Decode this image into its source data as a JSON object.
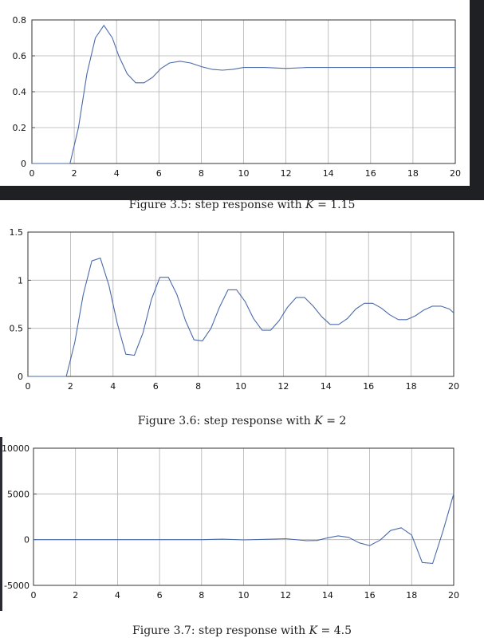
{
  "captions": [
    {
      "prefix": "Figure 3.5: step response with ",
      "var": "K",
      "suffix": " = 1.15"
    },
    {
      "prefix": "Figure 3.6: step response with ",
      "var": "K",
      "suffix": " = 2"
    },
    {
      "prefix": "Figure 3.7: step response with ",
      "var": "K",
      "suffix": " = 4.5"
    }
  ],
  "colors": {
    "line": "#4a6aaa",
    "grid": "#b0b0b0",
    "frame": "#333333",
    "background_dark": "#1f2024"
  },
  "chart_data": [
    {
      "type": "line",
      "xlim": [
        0,
        20
      ],
      "ylim": [
        0,
        0.8
      ],
      "xticks": [
        "0",
        "2",
        "4",
        "6",
        "8",
        "10",
        "12",
        "14",
        "16",
        "18",
        "20"
      ],
      "yticks": [
        "0",
        "0.2",
        "0.4",
        "0.6",
        "0.8"
      ],
      "grid": true,
      "series": [
        {
          "x": [
            0,
            1.8,
            2.2,
            2.6,
            3.0,
            3.4,
            3.8,
            4.1,
            4.5,
            4.9,
            5.3,
            5.7,
            6.1,
            6.5,
            7.0,
            7.5,
            8.0,
            8.5,
            9.0,
            9.5,
            10,
            11,
            12,
            13,
            14,
            16,
            18,
            20
          ],
          "y": [
            0,
            0,
            0.2,
            0.5,
            0.7,
            0.77,
            0.7,
            0.6,
            0.5,
            0.45,
            0.45,
            0.48,
            0.53,
            0.56,
            0.57,
            0.56,
            0.54,
            0.525,
            0.52,
            0.525,
            0.535,
            0.535,
            0.53,
            0.535,
            0.535,
            0.535,
            0.535,
            0.535
          ]
        }
      ]
    },
    {
      "type": "line",
      "xlim": [
        0,
        20
      ],
      "ylim": [
        0,
        1.5
      ],
      "xticks": [
        "0",
        "2",
        "4",
        "6",
        "8",
        "10",
        "12",
        "14",
        "16",
        "18",
        "20"
      ],
      "yticks": [
        "0",
        "0.5",
        "1",
        "1.5"
      ],
      "grid": true,
      "series": [
        {
          "x": [
            0,
            1.8,
            2.2,
            2.6,
            3.0,
            3.4,
            3.8,
            4.2,
            4.6,
            5.0,
            5.4,
            5.8,
            6.2,
            6.6,
            7.0,
            7.4,
            7.8,
            8.2,
            8.6,
            9.0,
            9.4,
            9.8,
            10.2,
            10.6,
            11.0,
            11.4,
            11.8,
            12.2,
            12.6,
            13.0,
            13.4,
            13.8,
            14.2,
            14.6,
            15.0,
            15.4,
            15.8,
            16.2,
            16.6,
            17.0,
            17.4,
            17.8,
            18.2,
            18.6,
            19.0,
            19.4,
            19.8,
            20
          ],
          "y": [
            0,
            0,
            0.35,
            0.85,
            1.2,
            1.23,
            0.95,
            0.55,
            0.23,
            0.22,
            0.45,
            0.8,
            1.03,
            1.03,
            0.85,
            0.58,
            0.38,
            0.37,
            0.5,
            0.72,
            0.9,
            0.9,
            0.78,
            0.6,
            0.48,
            0.48,
            0.58,
            0.72,
            0.82,
            0.82,
            0.73,
            0.62,
            0.54,
            0.54,
            0.6,
            0.7,
            0.76,
            0.76,
            0.71,
            0.64,
            0.59,
            0.59,
            0.63,
            0.69,
            0.73,
            0.73,
            0.7,
            0.66
          ]
        }
      ]
    },
    {
      "type": "line",
      "xlim": [
        0,
        20
      ],
      "ylim": [
        -5000,
        10000
      ],
      "xticks": [
        "0",
        "2",
        "4",
        "6",
        "8",
        "10",
        "12",
        "14",
        "16",
        "18",
        "20"
      ],
      "yticks": [
        "-5000",
        "0",
        "5000",
        "10000"
      ],
      "grid": true,
      "series": [
        {
          "x": [
            0,
            2,
            4,
            6,
            8,
            9,
            10,
            11,
            12,
            13,
            13.5,
            14,
            14.5,
            15,
            15.5,
            16,
            16.5,
            17,
            17.5,
            18,
            18.5,
            19,
            19.5,
            20
          ],
          "y": [
            0,
            0,
            0,
            0,
            0,
            50,
            -30,
            30,
            100,
            -120,
            -90,
            200,
            420,
            250,
            -350,
            -650,
            -50,
            1000,
            1300,
            500,
            -2500,
            -2600,
            1000,
            5000
          ]
        }
      ]
    }
  ]
}
